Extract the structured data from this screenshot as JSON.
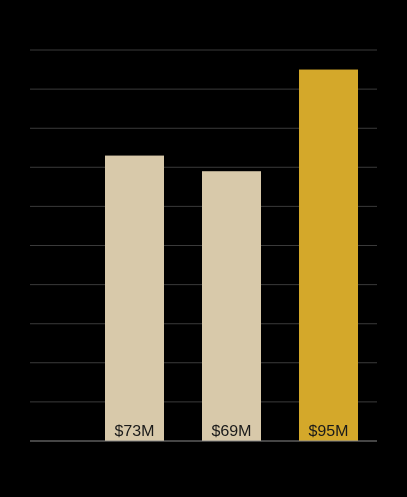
{
  "chart_data": {
    "type": "bar",
    "categories": [
      "",
      "",
      ""
    ],
    "values": [
      73,
      69,
      95
    ],
    "data_labels": [
      "$73M",
      "$69M",
      "$95M"
    ],
    "colors": [
      "#d8c9aa",
      "#d8c9aa",
      "#d4a82a"
    ],
    "ylim": [
      0,
      100
    ],
    "grid": true,
    "gridline_step": 10,
    "title": "",
    "xlabel": "",
    "ylabel": ""
  },
  "style": {
    "background": "#000000",
    "grid_color": "#3a3a3a",
    "axis_color": "#8a8a8a",
    "label_color": "#1a1a1a"
  }
}
